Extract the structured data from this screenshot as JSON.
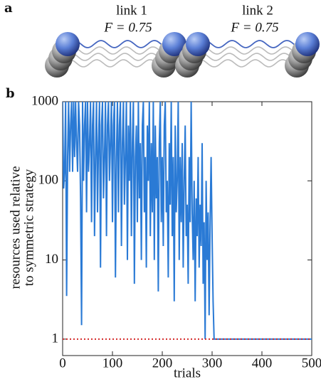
{
  "panel_a": {
    "label": "a",
    "links": [
      {
        "name": "link 1",
        "fidelity": "F = 0.75"
      },
      {
        "name": "link 2",
        "fidelity": "F = 0.75"
      }
    ]
  },
  "chart_data": {
    "type": "line",
    "panel_label": "b",
    "y_label_lines": [
      "resources used relative",
      "to symmetric strategy"
    ],
    "x_label": "trials",
    "xlim": [
      0,
      500
    ],
    "xticks": [
      0,
      100,
      200,
      300,
      400,
      500
    ],
    "ylim": [
      0.62,
      1000
    ],
    "yticks": [
      1,
      10,
      100,
      1000
    ],
    "yscale": "log",
    "reference_line": 1,
    "reference_color": "#d42a2a",
    "x": [
      0,
      2,
      4,
      6,
      8,
      10,
      12,
      14,
      16,
      18,
      20,
      22,
      24,
      26,
      28,
      30,
      32,
      34,
      36,
      38,
      40,
      42,
      44,
      46,
      48,
      50,
      52,
      54,
      56,
      58,
      60,
      62,
      64,
      66,
      68,
      70,
      72,
      74,
      76,
      78,
      80,
      82,
      84,
      86,
      88,
      90,
      92,
      94,
      96,
      98,
      100,
      102,
      104,
      106,
      108,
      110,
      112,
      114,
      116,
      118,
      120,
      122,
      124,
      126,
      128,
      130,
      132,
      134,
      136,
      138,
      140,
      142,
      144,
      146,
      148,
      150,
      152,
      154,
      156,
      158,
      160,
      162,
      164,
      166,
      168,
      170,
      172,
      174,
      176,
      178,
      180,
      182,
      184,
      186,
      188,
      190,
      192,
      194,
      196,
      198,
      200,
      202,
      204,
      206,
      208,
      210,
      212,
      214,
      216,
      218,
      220,
      222,
      224,
      226,
      228,
      230,
      232,
      234,
      236,
      238,
      240,
      242,
      244,
      246,
      248,
      250,
      252,
      254,
      256,
      258,
      260,
      262,
      264,
      266,
      268,
      270,
      272,
      274,
      276,
      278,
      280,
      282,
      284,
      286,
      288,
      290,
      292,
      294,
      296,
      298,
      300,
      302,
      304,
      306,
      308,
      310,
      500
    ],
    "series": [
      {
        "name": "resources",
        "color": "#2a7ad5",
        "values": [
          1000,
          80,
          130,
          1000,
          3.5,
          200,
          1000,
          130,
          500,
          1000,
          130,
          1000,
          200,
          1000,
          300,
          130,
          1000,
          500,
          60,
          1.5,
          1000,
          100,
          500,
          1000,
          40,
          1000,
          130,
          300,
          1000,
          30,
          500,
          1000,
          20,
          200,
          1000,
          40,
          300,
          1000,
          8,
          500,
          1000,
          60,
          200,
          1000,
          20,
          500,
          1000,
          100,
          300,
          1000,
          30,
          500,
          1000,
          6,
          200,
          1000,
          40,
          500,
          1000,
          15,
          300,
          1000,
          50,
          200,
          1000,
          10,
          500,
          100,
          1000,
          20,
          300,
          1000,
          5,
          200,
          500,
          30,
          1000,
          60,
          300,
          10,
          500,
          1000,
          40,
          200,
          8,
          500,
          100,
          1000,
          20,
          300,
          40,
          1000,
          10,
          500,
          60,
          200,
          4,
          300,
          1000,
          30,
          200,
          15,
          500,
          1000,
          40,
          100,
          6,
          300,
          50,
          1000,
          20,
          200,
          3,
          500,
          40,
          100,
          1000,
          10,
          200,
          30,
          300,
          8,
          100,
          500,
          20,
          50,
          5,
          200,
          30,
          1000,
          40,
          10,
          100,
          3,
          60,
          20,
          200,
          8,
          50,
          15,
          300,
          5,
          30,
          1,
          100,
          10,
          40,
          2,
          30,
          200,
          20,
          3,
          1,
          1,
          1,
          1,
          1
        ]
      }
    ]
  }
}
